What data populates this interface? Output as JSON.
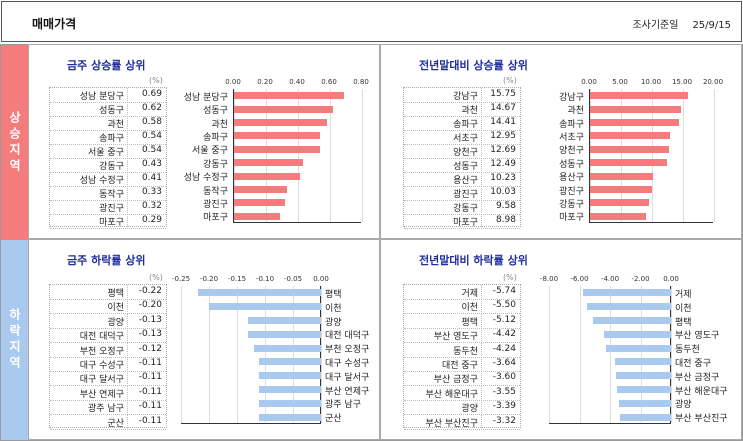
{
  "header": {
    "title": "매매가격",
    "date_label": "조사기준일",
    "date": "25/9/15"
  },
  "sections": {
    "rise": "상승지역",
    "fall": "하락지역"
  },
  "colors": {
    "rise": "#f47c7c",
    "fall": "#a9c9ee",
    "title": "#1f2d9e"
  },
  "chart_data": [
    {
      "type": "bar",
      "title": "금주 상승률 상위",
      "unit": "(%)",
      "xlim": [
        0,
        0.8
      ],
      "ticks": [
        "0.00",
        "0.20",
        "0.40",
        "0.60",
        "0.80"
      ],
      "categories": [
        "성남 분당구",
        "성동구",
        "과천",
        "송파구",
        "서울 중구",
        "강동구",
        "성남 수정구",
        "동작구",
        "광진구",
        "마포구"
      ],
      "values": [
        0.69,
        0.62,
        0.58,
        0.54,
        0.54,
        0.43,
        0.41,
        0.33,
        0.32,
        0.29
      ],
      "labels": [
        "0.69",
        "0.62",
        "0.58",
        "0.54",
        "0.54",
        "0.43",
        "0.41",
        "0.33",
        "0.32",
        "0.29"
      ]
    },
    {
      "type": "bar",
      "title": "전년말대비 상승률 상위",
      "unit": "(%)",
      "xlim": [
        0,
        20
      ],
      "ticks": [
        "0.00",
        "5.00",
        "10.00",
        "15.00",
        "20.00"
      ],
      "categories": [
        "강남구",
        "과천",
        "송파구",
        "서초구",
        "양천구",
        "성동구",
        "용산구",
        "광진구",
        "강동구",
        "마포구"
      ],
      "values": [
        15.75,
        14.67,
        14.41,
        12.95,
        12.69,
        12.49,
        10.23,
        10.03,
        9.58,
        8.98
      ],
      "labels": [
        "15.75",
        "14.67",
        "14.41",
        "12.95",
        "12.69",
        "12.49",
        "10.23",
        "10.03",
        "9.58",
        "8.98"
      ]
    },
    {
      "type": "bar",
      "title": "금주 하락률 상위",
      "unit": "(%)",
      "xlim": [
        -0.25,
        0
      ],
      "ticks": [
        "-0.25",
        "-0.20",
        "-0.15",
        "-0.10",
        "-0.05",
        "0.00"
      ],
      "categories": [
        "평택",
        "이천",
        "광양",
        "대전 대덕구",
        "부천 오정구",
        "대구 수성구",
        "대구 달서구",
        "부산 연제구",
        "광주 남구",
        "군산"
      ],
      "values": [
        -0.22,
        -0.2,
        -0.13,
        -0.13,
        -0.12,
        -0.11,
        -0.11,
        -0.11,
        -0.11,
        -0.11
      ],
      "labels": [
        "-0.22",
        "-0.20",
        "-0.13",
        "-0.13",
        "-0.12",
        "-0.11",
        "-0.11",
        "-0.11",
        "-0.11",
        "-0.11"
      ]
    },
    {
      "type": "bar",
      "title": "전년말대비 하락률 상위",
      "unit": "(%)",
      "xlim": [
        -8,
        0
      ],
      "ticks": [
        "-8.00",
        "-6.00",
        "-4.00",
        "-2.00",
        "0.00"
      ],
      "categories": [
        "거제",
        "이천",
        "평택",
        "부산 영도구",
        "동두천",
        "대전 중구",
        "부산 금정구",
        "부산 해운대구",
        "광양",
        "부산 부산진구"
      ],
      "values": [
        -5.74,
        -5.5,
        -5.12,
        -4.42,
        -4.24,
        -3.64,
        -3.6,
        -3.55,
        -3.39,
        -3.32
      ],
      "labels": [
        "-5.74",
        "-5.50",
        "-5.12",
        "-4.42",
        "-4.24",
        "-3.64",
        "-3.60",
        "-3.55",
        "-3.39",
        "-3.32"
      ]
    }
  ]
}
